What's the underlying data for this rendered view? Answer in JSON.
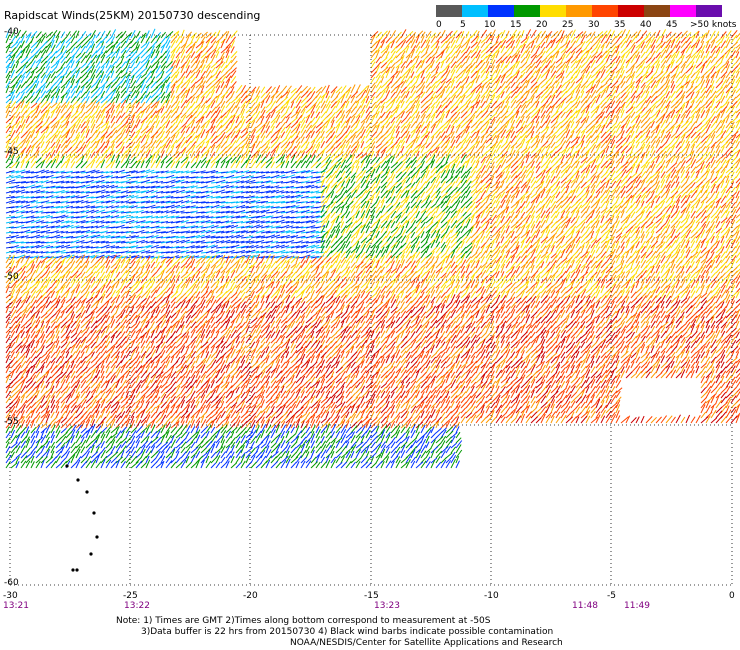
{
  "header": {
    "title": "Rapidscat Winds(25KM) 20150730 descending"
  },
  "color_scale": {
    "labels": [
      "0",
      "5",
      "10",
      "15",
      "20",
      "25",
      "30",
      "35",
      "40",
      "45",
      ">50 knots"
    ],
    "colors": [
      "#595959",
      "#00bfff",
      "#0033ff",
      "#009900",
      "#ffdd00",
      "#ff9900",
      "#ff4400",
      "#cc0000",
      "#8b4513",
      "#ff00ff",
      "#6a0dad"
    ]
  },
  "axes": {
    "lat_labels": [
      "-40",
      "-45",
      "-50",
      "-55",
      "-60"
    ],
    "lon_labels": [
      "-30",
      "-25",
      "-20",
      "-15",
      "-10",
      "-5",
      "0"
    ],
    "time_labels": [
      "13:21",
      "13:22",
      "13:23",
      "11:48",
      "11:49"
    ]
  },
  "notes": {
    "line1": "Note: 1) Times are GMT  2)Times along bottom correspond to measurement at -50S",
    "line2": "3)Data buffer is 22 hrs from 20150730  4) Black wind barbs indicate possible contamination",
    "line3": "NOAA/NESDIS/Center for Satellite Applications and Research"
  }
}
